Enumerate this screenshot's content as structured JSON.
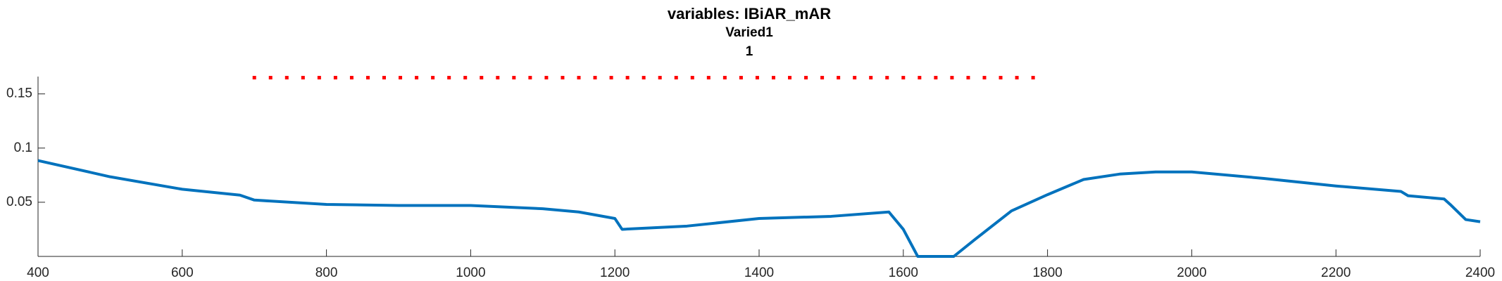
{
  "chart_data": {
    "type": "line",
    "title_lines": [
      "variables: IBiAR_mAR",
      "Varied1",
      "1"
    ],
    "xlim": [
      400,
      2400
    ],
    "xticks": [
      400,
      600,
      800,
      1000,
      1200,
      1400,
      1600,
      1800,
      2000,
      2200,
      2400
    ],
    "ylim": [
      0,
      0.166
    ],
    "yticks": [
      0.05,
      0.1,
      0.15
    ],
    "series": [
      {
        "style": "line",
        "color": "#0072bd",
        "x": [
          400,
          500,
          600,
          680,
          700,
          800,
          900,
          1000,
          1100,
          1150,
          1200,
          1210,
          1300,
          1400,
          1500,
          1580,
          1600,
          1620,
          1670,
          1700,
          1750,
          1800,
          1850,
          1900,
          1950,
          2000,
          2100,
          2200,
          2290,
          2300,
          2350,
          2360,
          2380,
          2400
        ],
        "values": [
          0.0885,
          0.0735,
          0.062,
          0.0566,
          0.052,
          0.048,
          0.047,
          0.047,
          0.044,
          0.041,
          0.035,
          0.025,
          0.028,
          0.035,
          0.037,
          0.041,
          0.025,
          0.0,
          0.0,
          0.016,
          0.042,
          0.057,
          0.071,
          0.076,
          0.078,
          0.078,
          0.072,
          0.065,
          0.06,
          0.056,
          0.053,
          0.047,
          0.034,
          0.032
        ]
      },
      {
        "style": "dots",
        "color": "#ff0000",
        "x": [
          700,
          722.5,
          745,
          767.5,
          790,
          812.5,
          835,
          857.5,
          880,
          902.5,
          925,
          947.5,
          970,
          992.5,
          1015,
          1037.5,
          1060,
          1082.5,
          1105,
          1127.5,
          1150,
          1172.5,
          1195,
          1217.5,
          1240,
          1262.5,
          1285,
          1307.5,
          1330,
          1352.5,
          1375,
          1397.5,
          1420,
          1442.5,
          1465,
          1487.5,
          1510,
          1532.5,
          1555,
          1577.5,
          1600,
          1622.5,
          1645,
          1667.5,
          1690,
          1712.5,
          1735,
          1757.5,
          1780
        ],
        "values": [
          0.165,
          0.165,
          0.165,
          0.165,
          0.165,
          0.165,
          0.165,
          0.165,
          0.165,
          0.165,
          0.165,
          0.165,
          0.165,
          0.165,
          0.165,
          0.165,
          0.165,
          0.165,
          0.165,
          0.165,
          0.165,
          0.165,
          0.165,
          0.165,
          0.165,
          0.165,
          0.165,
          0.165,
          0.165,
          0.165,
          0.165,
          0.165,
          0.165,
          0.165,
          0.165,
          0.165,
          0.165,
          0.165,
          0.165,
          0.165,
          0.165,
          0.165,
          0.165,
          0.165,
          0.165,
          0.165,
          0.165,
          0.165,
          0.165
        ]
      }
    ]
  }
}
